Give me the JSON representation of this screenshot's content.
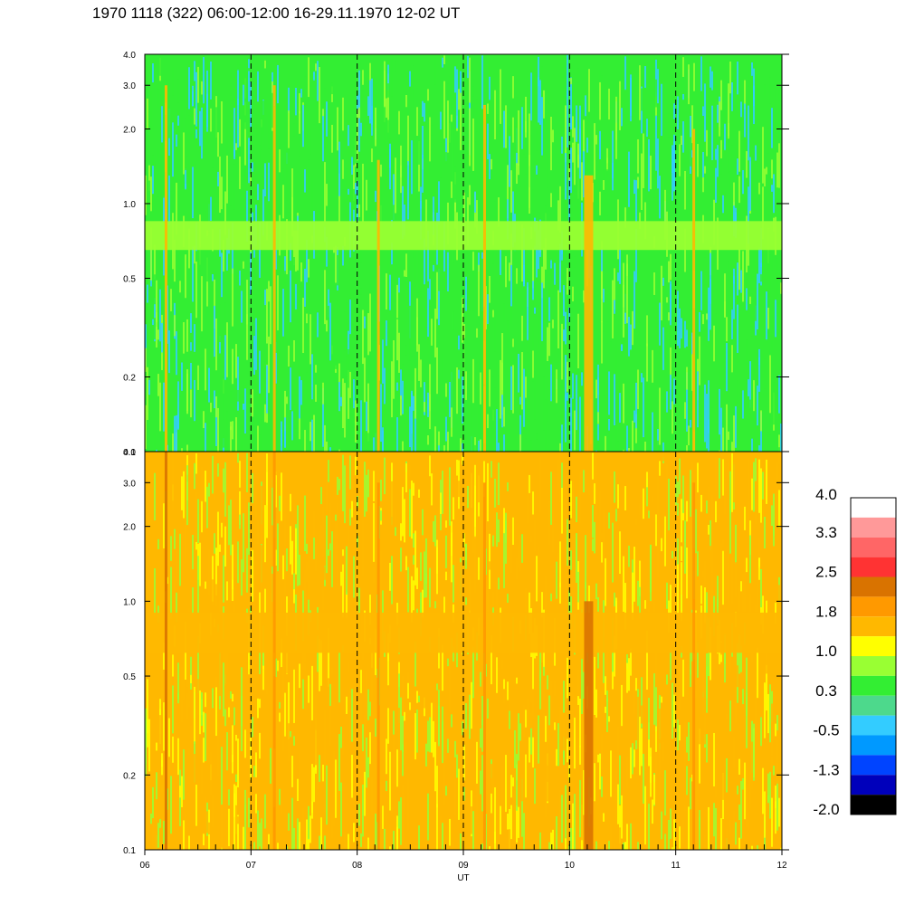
{
  "title": "1970 1118 (322) 06:00-12:00 16-29.11.1970  12-02 UT",
  "chart_data": {
    "type": "heatmap",
    "xlabel": "UT",
    "x_ticks": [
      "06",
      "07",
      "08",
      "09",
      "10",
      "11",
      "12"
    ],
    "x_range": [
      6,
      12
    ],
    "y_scale": "log",
    "y_range": [
      0.1,
      4.0
    ],
    "y_ticks": [
      "0.1",
      "0.2",
      "0.5",
      "1.0",
      "2.0",
      "3.0",
      "4.0"
    ],
    "y_tick_values": [
      0.1,
      0.2,
      0.5,
      1.0,
      2.0,
      3.0,
      4.0
    ],
    "dashed_gridlines_x": [
      7,
      8,
      9,
      10,
      11
    ],
    "panels": [
      {
        "name": "upper",
        "dominant_level": 0.3,
        "band": {
          "ymin": 0.65,
          "ymax": 0.85,
          "level": 1.0
        },
        "background_levels": [
          -0.5,
          0.3,
          0.65
        ],
        "bursts": [
          {
            "x": 6.2,
            "ymax": 3.0,
            "level": 1.8
          },
          {
            "x": 7.22,
            "ymax": 3.0,
            "level": 1.8
          },
          {
            "x": 8.2,
            "ymax": 1.5,
            "level": 1.8
          },
          {
            "x": 9.2,
            "ymax": 2.5,
            "level": 1.8
          },
          {
            "x": 10.18,
            "ymax": 1.3,
            "level": 1.8
          },
          {
            "x": 11.17,
            "ymax": 2.0,
            "level": 1.8
          }
        ]
      },
      {
        "name": "lower",
        "dominant_level": 1.8,
        "band": {
          "ymin": 0.62,
          "ymax": 0.9,
          "level": 1.8
        },
        "background_levels": [
          1.0,
          1.4,
          1.8
        ],
        "bursts": [
          {
            "x": 6.2,
            "ymax": 4.0,
            "level": 2.5
          },
          {
            "x": 7.22,
            "ymax": 4.0,
            "level": 2.2
          },
          {
            "x": 8.2,
            "ymax": 3.0,
            "level": 2.2
          },
          {
            "x": 9.2,
            "ymax": 3.0,
            "level": 2.2
          },
          {
            "x": 10.18,
            "ymax": 1.0,
            "level": 2.5
          },
          {
            "x": 11.17,
            "ymax": 3.0,
            "level": 2.2
          }
        ]
      }
    ],
    "colorbar": {
      "labels": [
        "4.0",
        "3.3",
        "2.5",
        "1.8",
        "1.0",
        "0.3",
        "-0.5",
        "-1.3",
        "-2.0"
      ],
      "colors": [
        "#ffffff",
        "#ff9999",
        "#ff6666",
        "#ff3333",
        "#d97300",
        "#ff9900",
        "#ffb800",
        "#ffff00",
        "#99ff33",
        "#33ee33",
        "#4dd98c",
        "#33ccff",
        "#0099ff",
        "#0044ff",
        "#0000bb",
        "#000000"
      ],
      "min": -2.0,
      "max": 4.0
    }
  }
}
